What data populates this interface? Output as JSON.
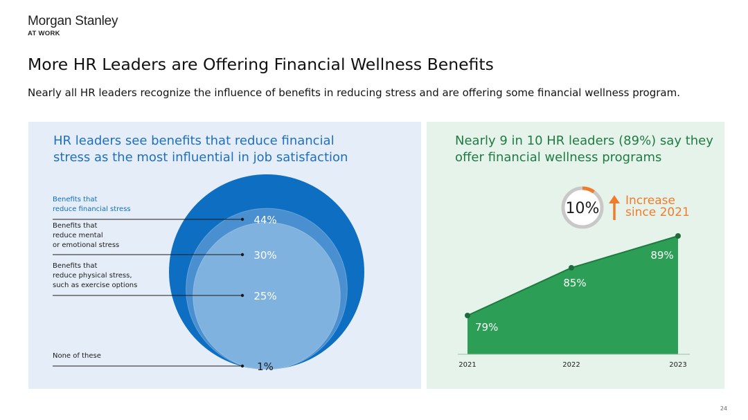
{
  "brand": {
    "name": "Morgan Stanley",
    "sub": "AT WORK"
  },
  "header": {
    "title": "More HR Leaders are Offering Financial Wellness Benefits",
    "subtitle": "Nearly all HR leaders recognize the influence of benefits in reducing stress and are offering some financial wellness program."
  },
  "left_panel": {
    "title": "HR leaders see benefits that reduce financial stress as the most influential in job satisfaction"
  },
  "right_panel": {
    "title": "Nearly 9 in 10 HR leaders (89%) say they offer financial wellness programs",
    "increase_value": "10%",
    "increase_label_1": "Increase",
    "increase_label_2": "since 2021"
  },
  "colors": {
    "blue_dark": "#0d6ec2",
    "blue_mid": "#4a90d0",
    "blue_light": "#7fb2de",
    "green": "#2c9e55",
    "orange": "#f07b2c",
    "title_blue": "#1f6fbf",
    "title_green": "#1f7a45"
  },
  "page_number": "24",
  "chart_data": [
    {
      "type": "bubble",
      "title": "HR leaders see benefits that reduce financial stress as the most influential in job satisfaction",
      "categories": [
        {
          "label": [
            "Benefits that",
            "reduce financial stress"
          ],
          "value": 44,
          "value_label": "44%"
        },
        {
          "label": [
            "Benefits that",
            "reduce mental",
            "or emotional stress"
          ],
          "value": 30,
          "value_label": "30%"
        },
        {
          "label": [
            "Benefits that",
            "reduce physical stress,",
            "such as exercise options"
          ],
          "value": 25,
          "value_label": "25%"
        },
        {
          "label": [
            "None of these"
          ],
          "value": 1,
          "value_label": "1%"
        }
      ]
    },
    {
      "type": "area",
      "title": "Nearly 9 in 10 HR leaders (89%) say they offer financial wellness programs",
      "x": [
        "2021",
        "2022",
        "2023"
      ],
      "values": [
        79,
        85,
        89
      ],
      "value_labels": [
        "79%",
        "85%",
        "89%"
      ],
      "annotation": {
        "value": 10,
        "text": "10%",
        "label": "Increase since 2021"
      }
    }
  ]
}
